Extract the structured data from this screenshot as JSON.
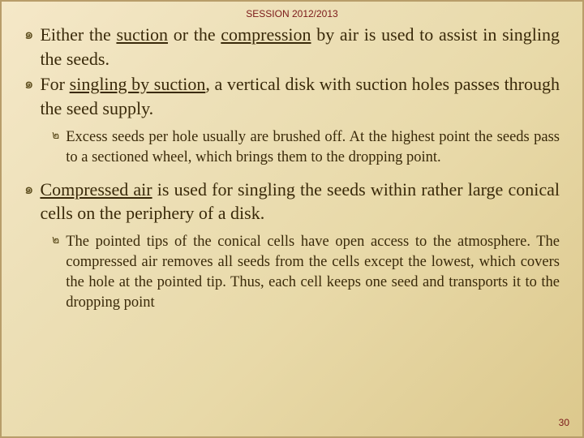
{
  "header": {
    "session": "SESSION 2012/2013"
  },
  "bullets": [
    {
      "type": "main",
      "parts": [
        {
          "t": "Either the "
        },
        {
          "t": "suction",
          "u": true
        },
        {
          "t": " or the "
        },
        {
          "t": "compression",
          "u": true
        },
        {
          "t": " by air is used to assist in singling the seeds."
        }
      ]
    },
    {
      "type": "main",
      "parts": [
        {
          "t": "For "
        },
        {
          "t": "singling by suction",
          "u": true
        },
        {
          "t": ", a vertical disk with suction holes passes through the seed supply."
        }
      ]
    },
    {
      "type": "sub",
      "parts": [
        {
          "t": "Excess seeds per hole usually are brushed off. At the highest point the seeds pass to a sectioned wheel, which brings them to the dropping point."
        }
      ]
    },
    {
      "type": "main",
      "parts": [
        {
          "t": "Compressed air",
          "u": true
        },
        {
          "t": " is used for singling the seeds within rather large conical cells on the periphery of a disk."
        }
      ]
    },
    {
      "type": "sub",
      "parts": [
        {
          "t": "The pointed tips of the conical cells have open access to the atmosphere. The compressed air removes all seeds from the cells except the lowest, which covers the hole at the pointed tip. Thus, each cell keeps one seed and transports it to the dropping point"
        }
      ]
    }
  ],
  "icons": {
    "main": "๑",
    "sub": "๒"
  },
  "pageNumber": "30",
  "style": {
    "background_gradient": [
      "#f5e8c8",
      "#ede0b8",
      "#e8d9a8",
      "#dcc88c"
    ],
    "border_color": "#b89d6a",
    "header_color": "#7a1818",
    "text_color": "#3a2a0a",
    "main_fontsize": 22,
    "sub_fontsize": 18.5,
    "font_family": "Georgia, serif"
  }
}
